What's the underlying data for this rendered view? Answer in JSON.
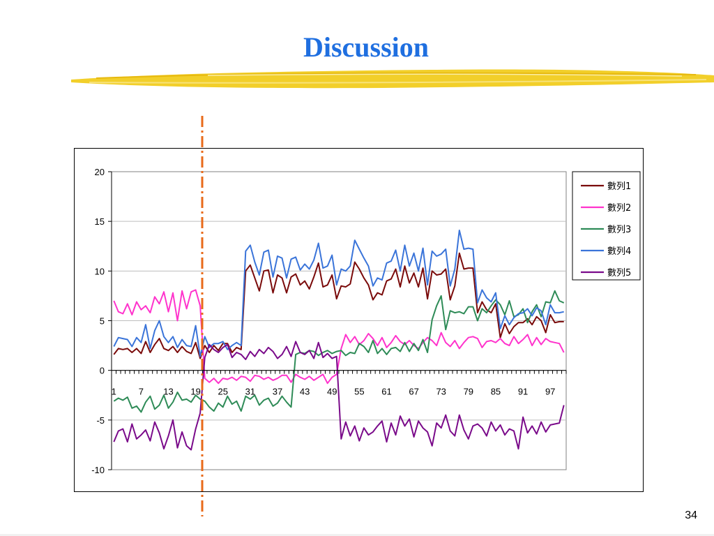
{
  "slide": {
    "title": "Discussion",
    "page_number": "34",
    "accent_color": "#1f6fe0",
    "divider_color": "#e86a1a",
    "brush_color": "#f2cf2a"
  },
  "chart_data": {
    "type": "line",
    "title": "",
    "xlabel": "",
    "ylabel": "",
    "ylim": [
      -10,
      20
    ],
    "yticks": [
      20,
      15,
      10,
      5,
      0,
      -5,
      -10
    ],
    "xtick_labels": [
      "1",
      "7",
      "13",
      "19",
      "25",
      "31",
      "37",
      "43",
      "49",
      "55",
      "61",
      "67",
      "73",
      "79",
      "85",
      "91",
      "97"
    ],
    "grid": "horizontal",
    "legend_position": "right",
    "divider_at_x": 20,
    "series": [
      {
        "name": "數列1",
        "color": "#7a0a0a",
        "values": [
          1.6,
          2.2,
          2.1,
          2.2,
          1.8,
          2.2,
          1.7,
          2.9,
          1.8,
          2.6,
          3.2,
          2.2,
          2.0,
          2.4,
          1.8,
          2.4,
          1.9,
          1.7,
          2.8,
          1.2,
          2.5,
          1.8,
          2.5,
          2.0,
          2.7,
          2.7,
          1.8,
          2.3,
          2.1,
          10.0,
          10.6,
          9.3,
          8.0,
          10.0,
          10.1,
          7.8,
          9.6,
          9.3,
          7.8,
          9.4,
          9.7,
          8.6,
          9.0,
          8.2,
          9.4,
          10.8,
          8.4,
          8.6,
          9.6,
          7.2,
          8.5,
          8.4,
          8.7,
          10.9,
          10.2,
          9.3,
          8.6,
          7.1,
          7.8,
          7.6,
          9.0,
          9.2,
          10.2,
          8.4,
          10.5,
          8.8,
          9.8,
          8.4,
          10.3,
          7.2,
          10.0,
          9.6,
          9.7,
          10.2,
          7.1,
          8.5,
          11.8,
          10.2,
          10.3,
          10.3,
          5.8,
          6.9,
          6.1,
          5.8,
          6.7,
          3.3,
          4.7,
          3.7,
          4.4,
          4.8,
          4.8,
          5.2,
          4.6,
          5.4,
          5.0,
          3.8,
          5.6,
          4.8,
          4.9,
          4.9
        ]
      },
      {
        "name": "數列2",
        "color": "#ff33cc",
        "values": [
          7.0,
          5.9,
          5.7,
          6.7,
          5.6,
          6.9,
          6.1,
          6.5,
          5.8,
          7.4,
          6.7,
          7.9,
          5.9,
          7.8,
          5.0,
          8.0,
          6.2,
          7.9,
          8.1,
          6.5,
          -0.8,
          -1.2,
          -0.8,
          -1.3,
          -0.8,
          -0.9,
          -0.7,
          -1.0,
          -0.6,
          -0.7,
          -1.1,
          -0.5,
          -0.6,
          -0.9,
          -0.7,
          -1.0,
          -0.8,
          -0.5,
          -0.5,
          -1.2,
          -0.4,
          -0.7,
          -0.9,
          -0.6,
          -1.0,
          -0.7,
          -0.4,
          -1.3,
          -0.7,
          -0.4,
          2.2,
          3.6,
          2.8,
          3.4,
          2.6,
          3.0,
          3.7,
          3.2,
          2.5,
          3.3,
          2.3,
          2.8,
          3.5,
          2.9,
          2.6,
          3.0,
          2.5,
          2.2,
          2.8,
          3.3,
          3.0,
          2.5,
          3.8,
          2.8,
          2.4,
          3.0,
          2.2,
          2.8,
          3.3,
          3.4,
          3.2,
          2.3,
          2.9,
          3.0,
          2.8,
          3.2,
          2.7,
          2.5,
          3.4,
          2.7,
          3.1,
          3.6,
          2.5,
          3.3,
          2.6,
          3.2,
          2.9,
          2.8,
          2.7,
          1.8
        ]
      },
      {
        "name": "數列3",
        "color": "#2e8b57",
        "values": [
          -3.1,
          -2.8,
          -3.0,
          -2.7,
          -3.8,
          -3.6,
          -4.2,
          -3.2,
          -2.6,
          -3.9,
          -3.5,
          -2.5,
          -3.8,
          -3.2,
          -2.2,
          -3.0,
          -2.9,
          -3.2,
          -2.5,
          -2.9,
          -3.1,
          -3.7,
          -4.1,
          -3.3,
          -3.7,
          -2.6,
          -3.4,
          -3.1,
          -4.1,
          -2.6,
          -2.9,
          -2.5,
          -3.5,
          -3.0,
          -2.8,
          -3.6,
          -3.3,
          -2.6,
          -3.2,
          -3.7,
          1.6,
          1.8,
          1.7,
          2.0,
          1.9,
          1.5,
          1.8,
          2.0,
          1.7,
          1.9,
          2.0,
          1.5,
          1.8,
          1.7,
          2.7,
          2.4,
          1.8,
          3.0,
          1.7,
          2.2,
          1.6,
          2.2,
          2.3,
          1.9,
          2.8,
          1.9,
          2.7,
          2.0,
          3.1,
          1.8,
          5.1,
          6.5,
          7.5,
          4.1,
          6.0,
          5.8,
          5.9,
          5.7,
          6.4,
          6.4,
          5.0,
          6.2,
          5.8,
          6.5,
          7.1,
          6.6,
          5.6,
          7.0,
          5.4,
          5.6,
          6.2,
          4.8,
          5.9,
          6.6,
          5.4,
          6.9,
          6.8,
          8.0,
          7.0,
          6.8
        ]
      },
      {
        "name": "數列4",
        "color": "#3a74d9",
        "values": [
          2.4,
          3.3,
          3.2,
          3.1,
          2.4,
          3.3,
          2.8,
          4.6,
          2.2,
          4.0,
          5.0,
          3.4,
          2.8,
          3.4,
          2.3,
          3.1,
          2.5,
          2.4,
          4.5,
          1.4,
          3.4,
          2.3,
          2.7,
          2.7,
          2.9,
          2.1,
          2.5,
          2.8,
          2.5,
          12.0,
          12.6,
          10.9,
          9.6,
          11.9,
          12.1,
          9.4,
          11.5,
          11.3,
          9.3,
          11.2,
          11.4,
          10.1,
          10.7,
          10.2,
          11.1,
          12.8,
          10.3,
          10.5,
          11.6,
          8.6,
          10.2,
          10.0,
          10.5,
          13.1,
          12.2,
          11.3,
          10.5,
          8.5,
          9.3,
          9.1,
          10.8,
          11.0,
          12.1,
          10.0,
          12.6,
          10.5,
          11.8,
          10.0,
          12.3,
          8.6,
          12.0,
          11.5,
          11.7,
          12.2,
          8.5,
          10.2,
          14.1,
          12.2,
          12.3,
          12.2,
          6.8,
          8.1,
          7.3,
          6.9,
          7.8,
          4.2,
          5.5,
          4.6,
          5.3,
          5.7,
          5.8,
          6.2,
          5.5,
          6.3,
          6.0,
          4.6,
          6.6,
          5.8,
          5.8,
          5.9
        ]
      },
      {
        "name": "數列5",
        "color": "#7a0a8a",
        "values": [
          -7.2,
          -6.1,
          -5.9,
          -7.2,
          -5.4,
          -6.9,
          -6.5,
          -6.0,
          -7.1,
          -5.2,
          -6.3,
          -7.9,
          -6.6,
          -5.0,
          -7.8,
          -6.2,
          -7.6,
          -8.0,
          -5.9,
          -4.3,
          1.3,
          2.6,
          2.1,
          1.8,
          2.3,
          2.6,
          1.3,
          1.8,
          1.6,
          1.1,
          1.9,
          1.4,
          2.1,
          1.7,
          2.3,
          1.9,
          1.2,
          1.6,
          2.4,
          1.4,
          2.9,
          1.8,
          1.6,
          2.0,
          1.2,
          2.8,
          1.3,
          1.7,
          1.2,
          1.4,
          -6.9,
          -5.2,
          -6.6,
          -5.6,
          -7.1,
          -5.8,
          -6.5,
          -6.2,
          -5.6,
          -5.1,
          -7.2,
          -5.3,
          -6.5,
          -4.6,
          -5.6,
          -4.9,
          -6.7,
          -5.1,
          -5.8,
          -6.2,
          -7.6,
          -5.3,
          -5.8,
          -4.5,
          -6.1,
          -6.6,
          -4.5,
          -6.0,
          -6.9,
          -5.6,
          -5.4,
          -5.8,
          -6.6,
          -5.2,
          -6.1,
          -5.5,
          -6.5,
          -5.9,
          -6.1,
          -7.9,
          -4.7,
          -6.3,
          -5.6,
          -6.4,
          -5.2,
          -6.2,
          -5.5,
          -5.4,
          -5.3,
          -3.5
        ]
      }
    ]
  }
}
